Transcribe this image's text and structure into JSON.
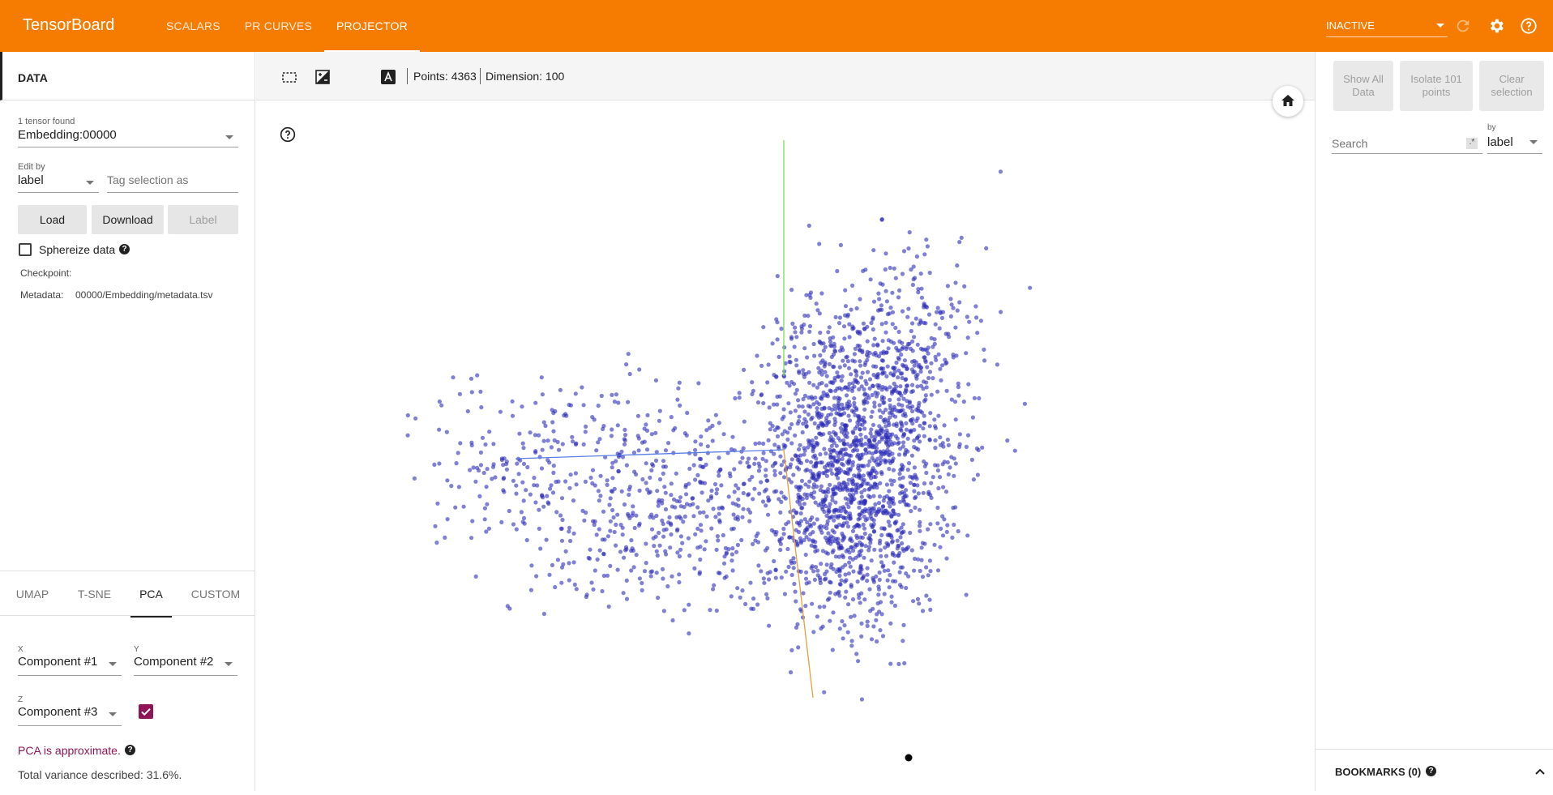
{
  "header": {
    "brand": "TensorBoard",
    "tabs": [
      {
        "label": "SCALARS",
        "active": false
      },
      {
        "label": "PR CURVES",
        "active": false
      },
      {
        "label": "PROJECTOR",
        "active": true
      }
    ],
    "status_select": "INACTIVE",
    "icons": [
      "refresh-icon",
      "settings-gear-icon",
      "help-icon"
    ],
    "color": "#f57c00"
  },
  "data_panel": {
    "title": "DATA",
    "tensor_count_label": "1 tensor found",
    "tensor_selected": "Embedding:00000",
    "edit_by_label": "Edit by",
    "edit_by_value": "label",
    "tag_placeholder": "Tag selection as",
    "buttons": {
      "load": "Load",
      "download": "Download",
      "label": "Label"
    },
    "sphereize_label": "Sphereize data",
    "checkpoint_label": "Checkpoint:",
    "checkpoint_value": "",
    "metadata_label": "Metadata:",
    "metadata_value": "00000/Embedding/metadata.tsv"
  },
  "projection": {
    "tabs": [
      {
        "label": "UMAP",
        "active": false
      },
      {
        "label": "T-SNE",
        "active": false
      },
      {
        "label": "PCA",
        "active": true
      },
      {
        "label": "CUSTOM",
        "active": false
      }
    ],
    "x_label": "X",
    "x_value": "Component #1",
    "y_label": "Y",
    "y_value": "Component #2",
    "z_label": "Z",
    "z_value": "Component #3",
    "z_enabled": true,
    "note": "PCA is approximate.",
    "variance": "Total variance described: 31.6%.",
    "accent_color": "#8e1657"
  },
  "toolbar": {
    "icons": [
      "select-box-icon",
      "night-mode-icon",
      "moon-icon",
      "label-a-icon"
    ],
    "points": "Points: 4363",
    "dimension": "Dimension: 100"
  },
  "inspector": {
    "buttons": {
      "show_all": "Show All Data",
      "isolate": "Isolate 101 points",
      "clear": "Clear selection"
    },
    "search_placeholder": "Search",
    "regex_glyph": ".*",
    "by_label": "by",
    "by_value": "label",
    "bookmarks": "BOOKMARKS (0)"
  },
  "scatter": {
    "point_color": "#2b2bb8",
    "axis_colors": {
      "x": "#5b7fe6",
      "y": "#7ed957",
      "z": "#e6a03c"
    }
  }
}
